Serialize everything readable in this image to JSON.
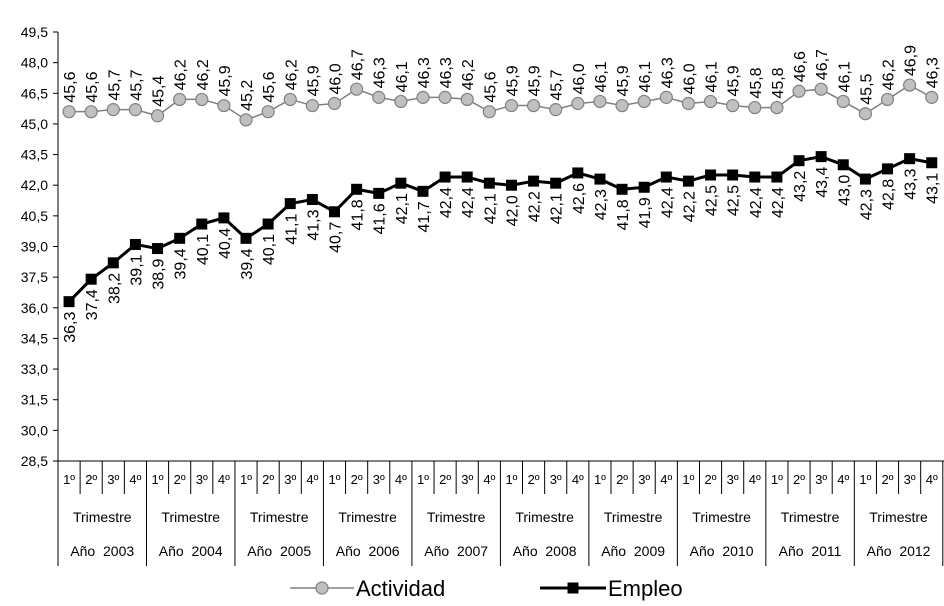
{
  "chart_data": {
    "type": "line",
    "ylim": [
      28.5,
      49.5
    ],
    "yticks": [
      "28,5",
      "30,0",
      "31,5",
      "33,0",
      "34,5",
      "36,0",
      "37,5",
      "39,0",
      "40,5",
      "42,0",
      "43,5",
      "45,0",
      "46,5",
      "48,0",
      "49,5"
    ],
    "x_quarters": [
      "1º",
      "2º",
      "3º",
      "4º"
    ],
    "x_trimestre_label": "Trimestre",
    "x_years": [
      "Año  2003",
      "Año  2004",
      "Año  2005",
      "Año  2006",
      "Año  2007",
      "Año  2008",
      "Año  2009",
      "Año  2010",
      "Año  2011",
      "Año  2012"
    ],
    "series": [
      {
        "name": "Actividad",
        "marker": "circle",
        "color": "#808080",
        "fill": "#c0c0c0",
        "values": [
          45.6,
          45.6,
          45.7,
          45.7,
          45.4,
          46.2,
          46.2,
          45.9,
          45.2,
          45.6,
          46.2,
          45.9,
          46.0,
          46.7,
          46.3,
          46.1,
          46.3,
          46.3,
          46.2,
          45.6,
          45.9,
          45.9,
          45.7,
          46.0,
          46.1,
          45.9,
          46.1,
          46.3,
          46.0,
          46.1,
          45.9,
          45.8,
          45.8,
          46.6,
          46.7,
          46.1,
          45.5,
          46.2,
          46.9,
          46.3
        ],
        "labels": [
          "45,6",
          "45,6",
          "45,7",
          "45,7",
          "45,4",
          "46,2",
          "46,2",
          "45,9",
          "45,2",
          "45,6",
          "46,2",
          "45,9",
          "46,0",
          "46,7",
          "46,3",
          "46,1",
          "46,3",
          "46,3",
          "46,2",
          "45,6",
          "45,9",
          "45,9",
          "45,7",
          "46,0",
          "46,1",
          "45,9",
          "46,1",
          "46,3",
          "46,0",
          "46,1",
          "45,9",
          "45,8",
          "45,8",
          "46,6",
          "46,7",
          "46,1",
          "45,5",
          "46,2",
          "46,9",
          "46,3"
        ]
      },
      {
        "name": "Empleo",
        "marker": "square",
        "color": "#000000",
        "fill": "#000000",
        "values": [
          36.3,
          37.4,
          38.2,
          39.1,
          38.9,
          39.4,
          40.1,
          40.4,
          39.4,
          40.1,
          41.1,
          41.3,
          40.7,
          41.8,
          41.6,
          42.1,
          41.7,
          42.4,
          42.4,
          42.1,
          42.0,
          42.2,
          42.1,
          42.6,
          42.3,
          41.8,
          41.9,
          42.4,
          42.2,
          42.5,
          42.5,
          42.4,
          42.4,
          43.2,
          43.4,
          43.0,
          42.3,
          42.8,
          43.3,
          43.1
        ],
        "labels": [
          "36,3",
          "37,4",
          "38,2",
          "39,1",
          "38,9",
          "39,4",
          "40,1",
          "40,4",
          "39,4",
          "40,1",
          "41,1",
          "41,3",
          "40,7",
          "41,8",
          "41,6",
          "42,1",
          "41,7",
          "42,4",
          "42,4",
          "42,1",
          "42,0",
          "42,2",
          "42,1",
          "42,6",
          "42,3",
          "41,8",
          "41,9",
          "42,4",
          "42,2",
          "42,5",
          "42,5",
          "42,4",
          "42,4",
          "43,2",
          "43,4",
          "43,0",
          "42,3",
          "42,8",
          "43,3",
          "43,1"
        ]
      }
    ],
    "legend_position": "bottom"
  }
}
